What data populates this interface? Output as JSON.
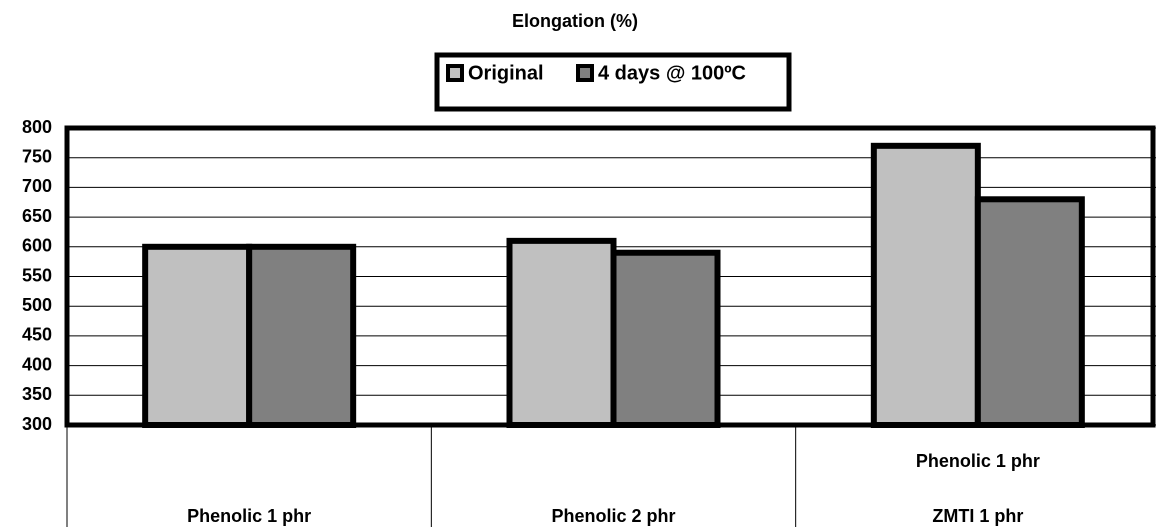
{
  "chart_data": {
    "type": "bar",
    "title": "Elongation (%)",
    "categories": [
      [
        "Phenolic 1 phr"
      ],
      [
        "Phenolic 2 phr"
      ],
      [
        "Phenolic 1 phr",
        "ZMTI 1 phr"
      ]
    ],
    "series": [
      {
        "name": "Original",
        "color": "#c0c0c0",
        "values": [
          600,
          610,
          770
        ]
      },
      {
        "name": "4 days @ 100ºC",
        "color": "#808080",
        "values": [
          600,
          590,
          680
        ]
      }
    ],
    "ylim": [
      300,
      800
    ],
    "yticks": [
      300,
      350,
      400,
      450,
      500,
      550,
      600,
      650,
      700,
      750,
      800
    ],
    "grid": true,
    "legend": "top"
  }
}
